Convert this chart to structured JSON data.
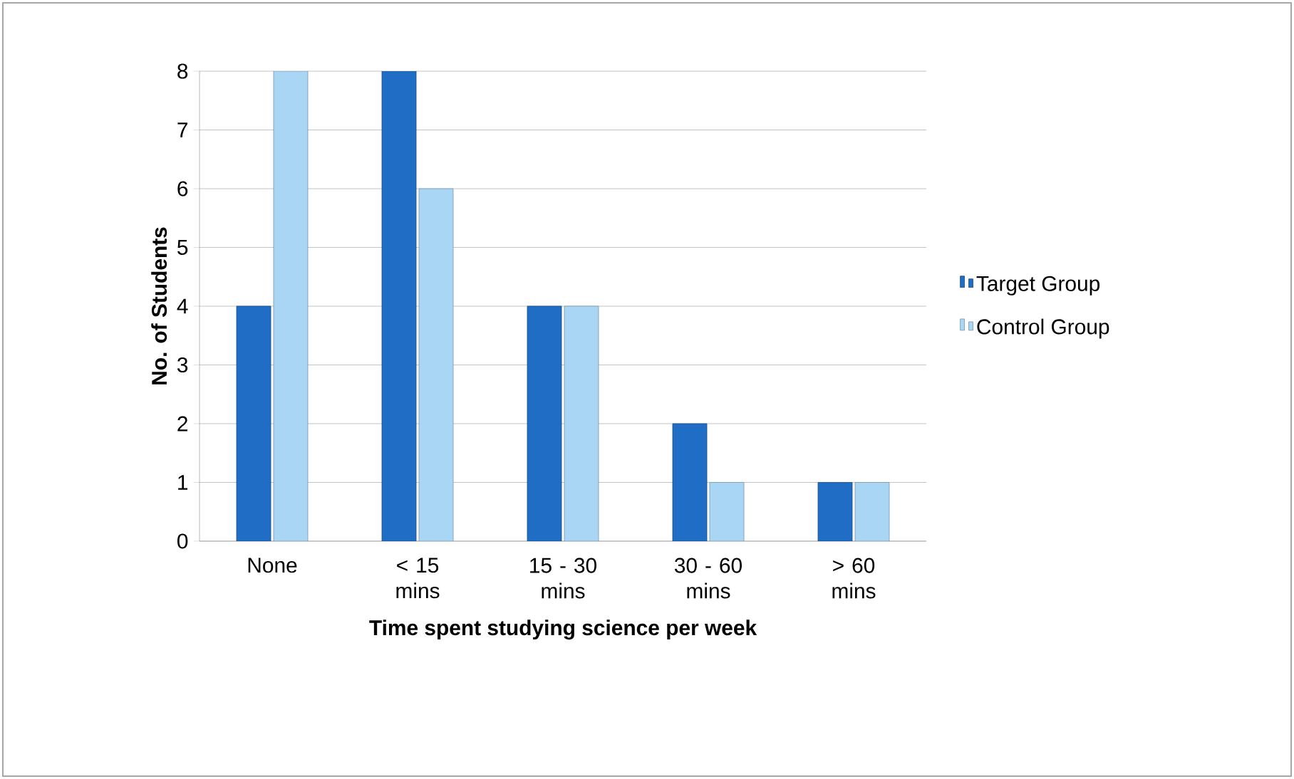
{
  "chart_data": {
    "type": "bar",
    "xlabel": "Time spent studying science per week",
    "ylabel": "No. of Students",
    "categories": [
      "None",
      "< 15 mins",
      "15 - 30 mins",
      "30 - 60 mins",
      "> 60 mins"
    ],
    "series": [
      {
        "name": "Target Group",
        "color": "#1f6dc4",
        "values": [
          4,
          8,
          4,
          2,
          1
        ]
      },
      {
        "name": "Control Group",
        "color": "#a9d6f5",
        "values": [
          8,
          6,
          4,
          1,
          1
        ]
      }
    ],
    "ylim": [
      0,
      8
    ],
    "yticks": [
      0,
      1,
      2,
      3,
      4,
      5,
      6,
      7,
      8
    ],
    "grid": "y",
    "legend": "right"
  }
}
